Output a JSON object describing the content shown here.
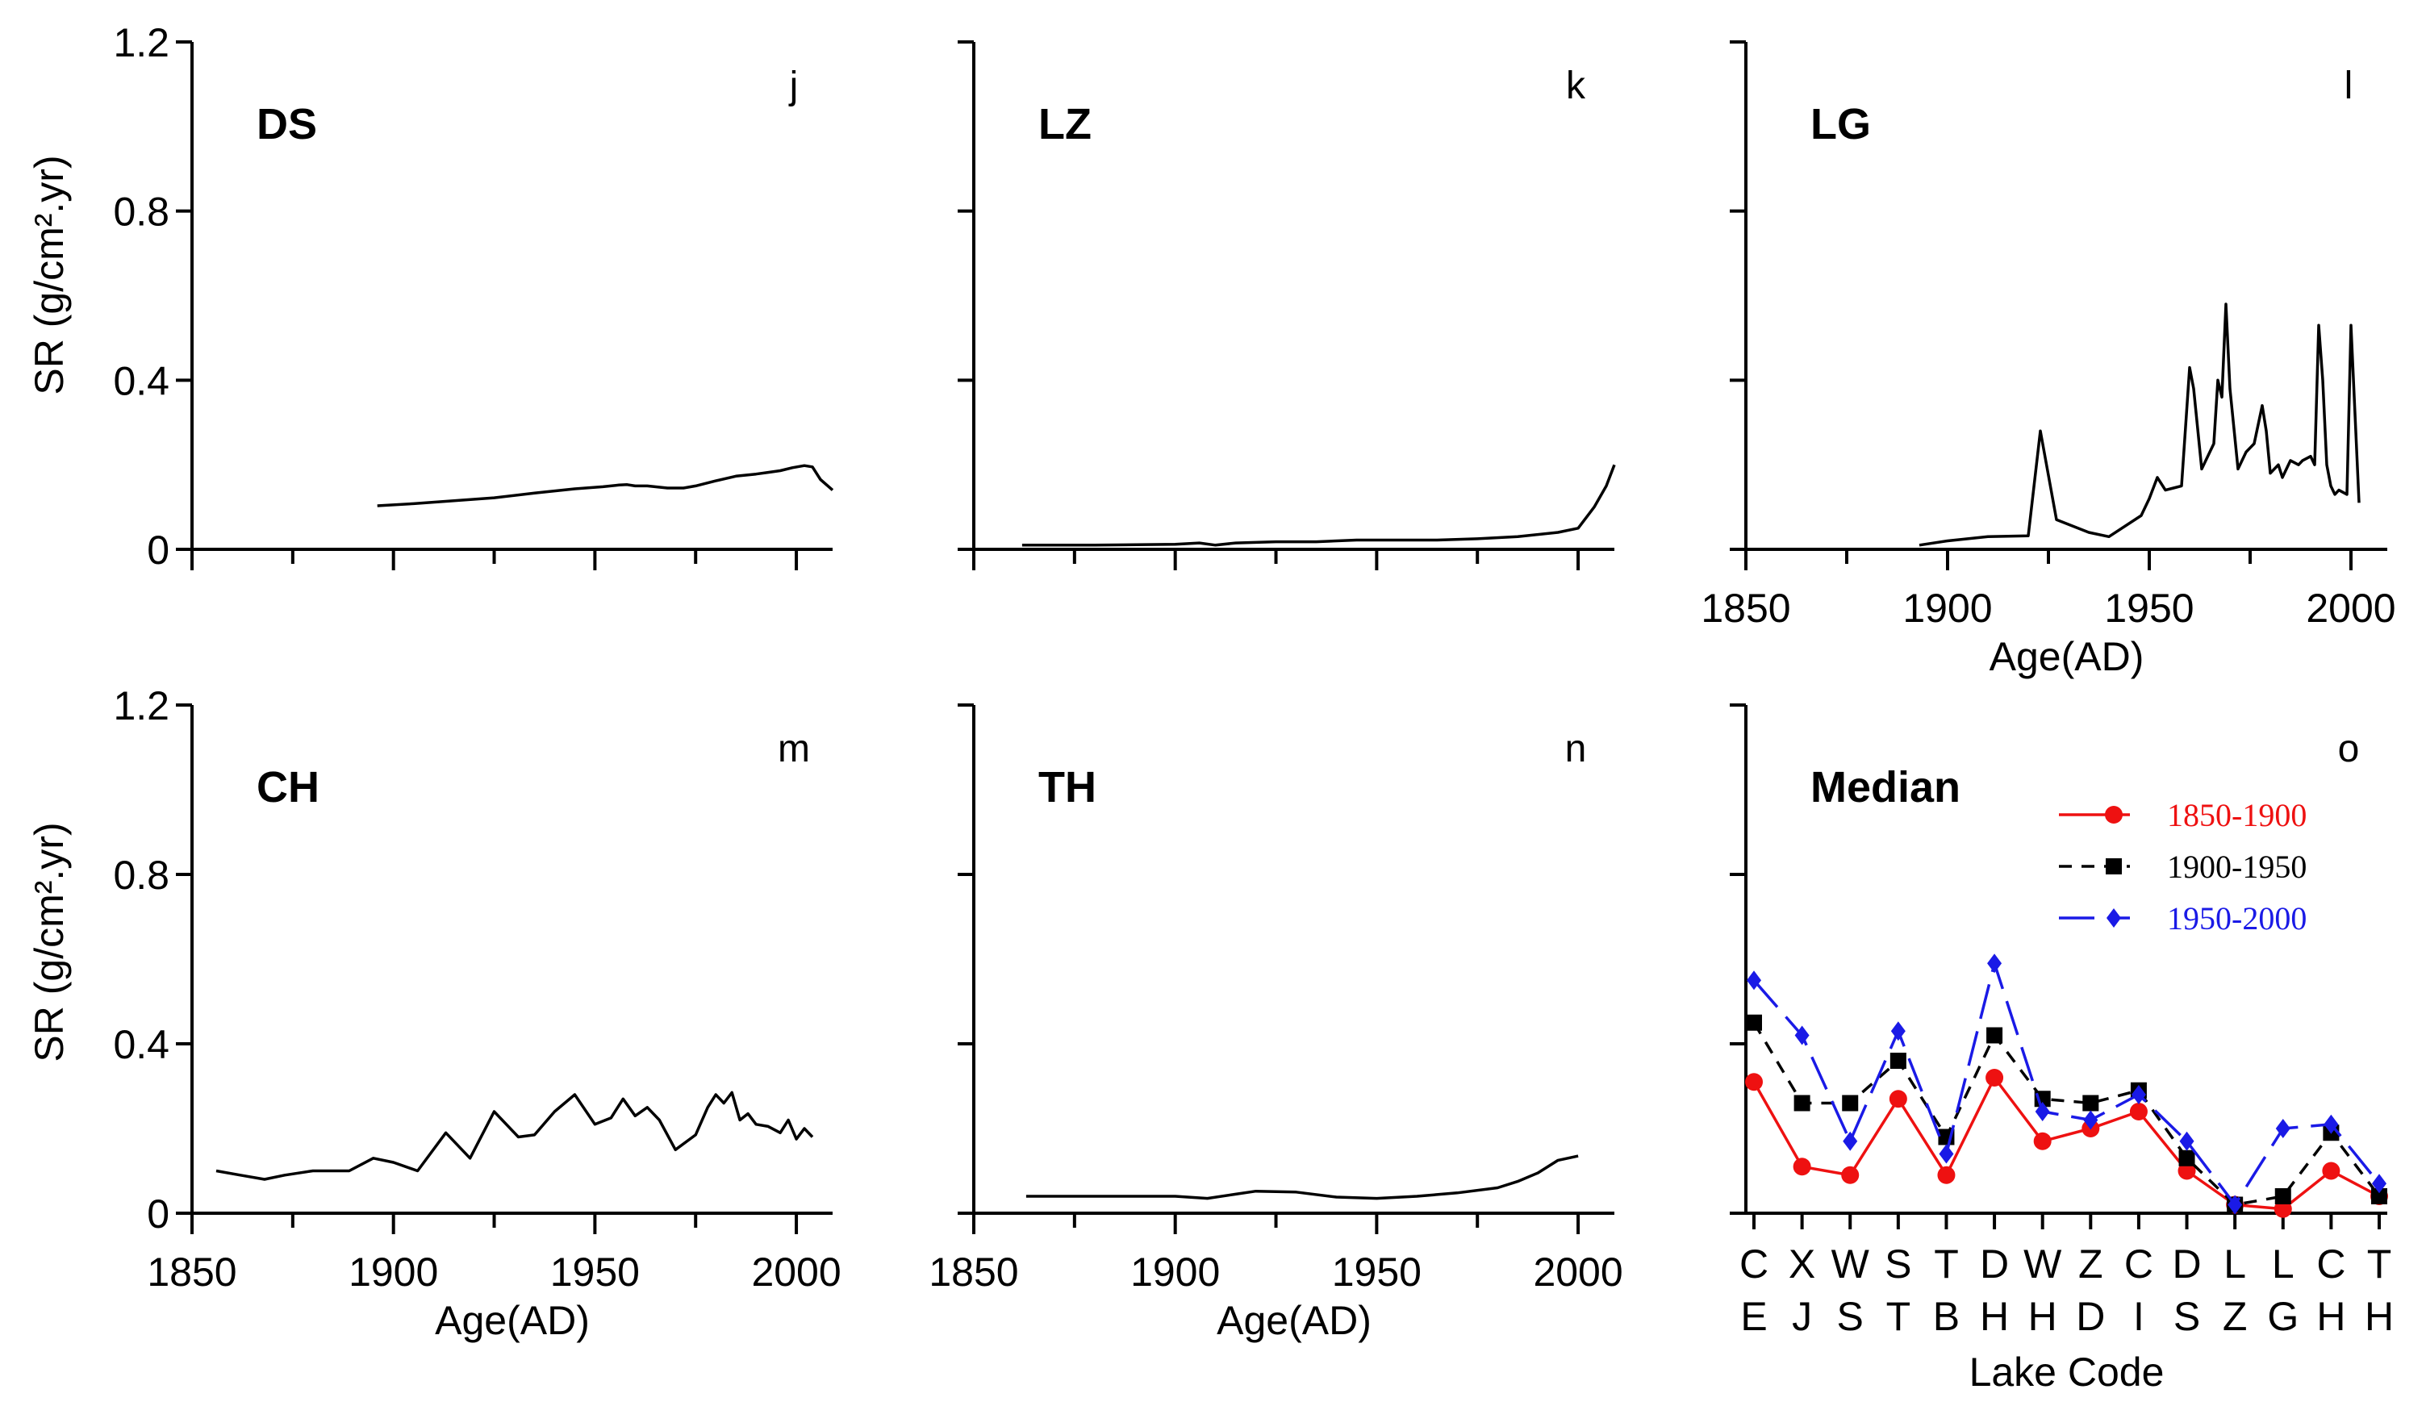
{
  "figure": {
    "ylabel": "SR (g/cm².yr)"
  },
  "chart_data": [
    {
      "type": "line",
      "panel": "j",
      "title": "DS",
      "xlabel": "",
      "ylabel": "SR (g/cm².yr)",
      "xlim": [
        1850,
        2009
      ],
      "ylim": [
        0,
        1.2
      ],
      "xticks": [
        1850,
        1875,
        1900,
        1925,
        1950,
        1975,
        2000
      ],
      "xtick_labels": [],
      "yticks": [
        0,
        0.4,
        0.8,
        1.2
      ],
      "ytick_labels": [
        "0",
        "0.4",
        "0.8",
        "1.2"
      ],
      "series": [
        {
          "name": "DS",
          "color": "#000000",
          "x": [
            1896,
            1905,
            1915,
            1925,
            1935,
            1945,
            1952,
            1956,
            1958,
            1960,
            1963,
            1968,
            1972,
            1975,
            1980,
            1985,
            1990,
            1993,
            1996,
            1999,
            2002,
            2004,
            2006,
            2009
          ],
          "y": [
            0.103,
            0.108,
            0.115,
            0.122,
            0.133,
            0.143,
            0.148,
            0.152,
            0.153,
            0.15,
            0.15,
            0.145,
            0.145,
            0.15,
            0.162,
            0.173,
            0.178,
            0.182,
            0.186,
            0.193,
            0.198,
            0.195,
            0.165,
            0.14
          ]
        }
      ]
    },
    {
      "type": "line",
      "panel": "k",
      "title": "LZ",
      "xlabel": "",
      "ylabel": "",
      "xlim": [
        1850,
        2009
      ],
      "ylim": [
        0,
        1.2
      ],
      "xticks": [
        1850,
        1875,
        1900,
        1925,
        1950,
        1975,
        2000
      ],
      "xtick_labels": [],
      "yticks": [
        0,
        0.4,
        0.8,
        1.2
      ],
      "ytick_labels": [],
      "series": [
        {
          "name": "LZ",
          "color": "#000000",
          "x": [
            1862,
            1880,
            1900,
            1906,
            1910,
            1915,
            1925,
            1935,
            1945,
            1955,
            1965,
            1975,
            1985,
            1995,
            2000,
            2004,
            2007,
            2009
          ],
          "y": [
            0.01,
            0.01,
            0.012,
            0.015,
            0.01,
            0.015,
            0.018,
            0.018,
            0.022,
            0.022,
            0.022,
            0.025,
            0.03,
            0.04,
            0.05,
            0.1,
            0.15,
            0.2
          ]
        }
      ]
    },
    {
      "type": "line",
      "panel": "l",
      "title": "LG",
      "xlabel": "Age(AD)",
      "ylabel": "",
      "xlim": [
        1850,
        2009
      ],
      "ylim": [
        0,
        1.2
      ],
      "xticks": [
        1850,
        1875,
        1900,
        1925,
        1950,
        1975,
        2000
      ],
      "xtick_labels": [
        "1850",
        "1900",
        "1950",
        "2000"
      ],
      "yticks": [
        0,
        0.4,
        0.8,
        1.2
      ],
      "ytick_labels": [],
      "series": [
        {
          "name": "LG",
          "color": "#000000",
          "x": [
            1893,
            1900,
            1910,
            1920,
            1923,
            1927,
            1935,
            1940,
            1948,
            1950,
            1952,
            1954,
            1956,
            1958,
            1960,
            1961,
            1963,
            1966,
            1967,
            1968,
            1969,
            1970,
            1972,
            1974,
            1975,
            1976,
            1978,
            1979,
            1980,
            1982,
            1983,
            1985,
            1987,
            1988,
            1990,
            1991,
            1992,
            1993,
            1994,
            1995,
            1996,
            1997,
            1999,
            2000,
            2002
          ],
          "y": [
            0.01,
            0.02,
            0.03,
            0.032,
            0.28,
            0.07,
            0.04,
            0.03,
            0.08,
            0.12,
            0.17,
            0.14,
            0.145,
            0.15,
            0.43,
            0.38,
            0.19,
            0.25,
            0.4,
            0.36,
            0.58,
            0.38,
            0.19,
            0.23,
            0.24,
            0.25,
            0.34,
            0.28,
            0.18,
            0.2,
            0.17,
            0.21,
            0.2,
            0.21,
            0.22,
            0.2,
            0.53,
            0.4,
            0.2,
            0.15,
            0.13,
            0.14,
            0.13,
            0.53,
            0.11
          ]
        }
      ]
    },
    {
      "type": "line",
      "panel": "m",
      "title": "CH",
      "xlabel": "Age(AD)",
      "ylabel": "SR (g/cm².yr)",
      "xlim": [
        1850,
        2009
      ],
      "ylim": [
        0,
        1.2
      ],
      "xticks": [
        1850,
        1875,
        1900,
        1925,
        1950,
        1975,
        2000
      ],
      "xtick_labels": [
        "1850",
        "1900",
        "1950",
        "2000"
      ],
      "yticks": [
        0,
        0.4,
        0.8,
        1.2
      ],
      "ytick_labels": [
        "0",
        "0.4",
        "0.8",
        "1.2"
      ],
      "series": [
        {
          "name": "CH",
          "color": "#000000",
          "x": [
            1856,
            1862,
            1868,
            1873,
            1880,
            1889,
            1895,
            1900,
            1906,
            1913,
            1919,
            1925,
            1931,
            1935,
            1940,
            1945,
            1950,
            1954,
            1957,
            1960,
            1963,
            1966,
            1970,
            1975,
            1978,
            1980,
            1982,
            1984,
            1986,
            1988,
            1990,
            1993,
            1996,
            1998,
            2000,
            2002,
            2004
          ],
          "y": [
            0.1,
            0.09,
            0.08,
            0.09,
            0.1,
            0.1,
            0.13,
            0.12,
            0.1,
            0.19,
            0.13,
            0.24,
            0.18,
            0.185,
            0.24,
            0.28,
            0.21,
            0.225,
            0.27,
            0.23,
            0.25,
            0.22,
            0.15,
            0.185,
            0.25,
            0.28,
            0.26,
            0.285,
            0.22,
            0.235,
            0.21,
            0.205,
            0.19,
            0.22,
            0.175,
            0.2,
            0.18
          ]
        }
      ]
    },
    {
      "type": "line",
      "panel": "n",
      "title": "TH",
      "xlabel": "Age(AD)",
      "ylabel": "",
      "xlim": [
        1850,
        2009
      ],
      "ylim": [
        0,
        1.2
      ],
      "xticks": [
        1850,
        1875,
        1900,
        1925,
        1950,
        1975,
        2000
      ],
      "xtick_labels": [
        "1850",
        "1900",
        "1950",
        "2000"
      ],
      "yticks": [
        0,
        0.4,
        0.8,
        1.2
      ],
      "ytick_labels": [],
      "series": [
        {
          "name": "TH",
          "color": "#000000",
          "x": [
            1863,
            1880,
            1900,
            1908,
            1915,
            1920,
            1930,
            1940,
            1950,
            1960,
            1970,
            1980,
            1985,
            1990,
            1995,
            2000
          ],
          "y": [
            0.04,
            0.04,
            0.04,
            0.035,
            0.045,
            0.052,
            0.05,
            0.038,
            0.035,
            0.04,
            0.048,
            0.06,
            0.075,
            0.095,
            0.125,
            0.135
          ]
        }
      ]
    },
    {
      "type": "line",
      "panel": "o",
      "title": "Median",
      "xlabel": "Lake Code",
      "ylabel": "",
      "ylim": [
        0,
        1.2
      ],
      "yticks": [
        0,
        0.4,
        0.8,
        1.2
      ],
      "ytick_labels": [],
      "categories": [
        "CE",
        "XJ",
        "WS",
        "ST",
        "TB",
        "DH",
        "WH",
        "ZD",
        "CI",
        "DS",
        "LZ",
        "LG",
        "CH",
        "TH"
      ],
      "legend_position": "top-right",
      "series": [
        {
          "name": "1850-1900",
          "color": "#ee1111",
          "marker": "circle",
          "dash": "solid",
          "values": [
            0.31,
            0.11,
            0.09,
            0.27,
            0.09,
            0.32,
            0.17,
            0.2,
            0.24,
            0.1,
            0.02,
            0.01,
            0.1,
            0.04
          ]
        },
        {
          "name": "1900-1950",
          "color": "#000000",
          "marker": "square",
          "dash": "short-dash",
          "values": [
            0.45,
            0.26,
            0.26,
            0.36,
            0.18,
            0.42,
            0.27,
            0.26,
            0.29,
            0.13,
            0.02,
            0.04,
            0.19,
            0.04
          ]
        },
        {
          "name": "1950-2000",
          "color": "#1a1ae6",
          "marker": "diamond",
          "dash": "long-dash",
          "values": [
            0.55,
            0.42,
            0.17,
            0.43,
            0.14,
            0.59,
            0.24,
            0.22,
            0.28,
            0.17,
            0.02,
            0.2,
            0.21,
            0.07
          ]
        }
      ]
    }
  ]
}
